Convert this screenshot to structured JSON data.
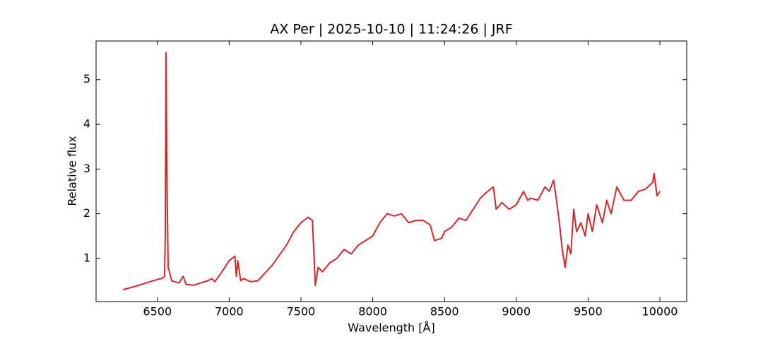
{
  "chart_data": {
    "type": "line",
    "title": "AX Per | 2025-10-10 | 11:24:26 | JRF",
    "x_label": "Wavelength [Å]",
    "y_label": "Relative flux",
    "xlim": [
      6073,
      10187
    ],
    "ylim": [
      0.035,
      5.865
    ],
    "xticks": [
      6500,
      7000,
      7500,
      8000,
      8500,
      9000,
      9500,
      10000
    ],
    "yticks": [
      1,
      2,
      3,
      4,
      5
    ],
    "grid": false,
    "series": [
      {
        "name": "AX Per",
        "color": "#d62728",
        "x": [
          6260,
          6350,
          6450,
          6500,
          6530,
          6550,
          6555,
          6560,
          6566,
          6575,
          6600,
          6650,
          6680,
          6700,
          6750,
          6850,
          6880,
          6900,
          6950,
          7000,
          7040,
          7050,
          7060,
          7080,
          7100,
          7150,
          7200,
          7300,
          7400,
          7450,
          7500,
          7550,
          7580,
          7600,
          7620,
          7650,
          7700,
          7750,
          7800,
          7850,
          7900,
          7950,
          8000,
          8050,
          8100,
          8150,
          8200,
          8250,
          8300,
          8350,
          8400,
          8430,
          8480,
          8500,
          8550,
          8600,
          8650,
          8700,
          8750,
          8800,
          8840,
          8860,
          8900,
          8950,
          9000,
          9050,
          9080,
          9100,
          9150,
          9200,
          9230,
          9260,
          9280,
          9300,
          9320,
          9340,
          9360,
          9380,
          9400,
          9420,
          9450,
          9480,
          9500,
          9530,
          9560,
          9600,
          9630,
          9660,
          9700,
          9750,
          9800,
          9850,
          9900,
          9950,
          9960,
          9980,
          10000
        ],
        "values": [
          0.3,
          0.38,
          0.48,
          0.53,
          0.55,
          0.6,
          1.5,
          5.6,
          3.0,
          0.8,
          0.5,
          0.45,
          0.6,
          0.42,
          0.4,
          0.5,
          0.55,
          0.48,
          0.7,
          0.95,
          1.05,
          0.6,
          0.95,
          0.5,
          0.55,
          0.48,
          0.5,
          0.85,
          1.3,
          1.6,
          1.8,
          1.92,
          1.85,
          0.4,
          0.8,
          0.7,
          0.9,
          1.0,
          1.2,
          1.1,
          1.3,
          1.4,
          1.5,
          1.8,
          2.0,
          1.95,
          2.0,
          1.8,
          1.85,
          1.85,
          1.75,
          1.4,
          1.45,
          1.6,
          1.7,
          1.9,
          1.85,
          2.1,
          2.35,
          2.5,
          2.6,
          2.1,
          2.25,
          2.1,
          2.2,
          2.5,
          2.3,
          2.35,
          2.3,
          2.6,
          2.5,
          2.75,
          2.3,
          1.8,
          1.2,
          0.8,
          1.3,
          1.1,
          2.1,
          1.6,
          1.8,
          1.5,
          2.0,
          1.6,
          2.2,
          1.8,
          2.3,
          2.0,
          2.6,
          2.3,
          2.3,
          2.5,
          2.55,
          2.7,
          2.9,
          2.4,
          2.5
        ]
      }
    ]
  }
}
